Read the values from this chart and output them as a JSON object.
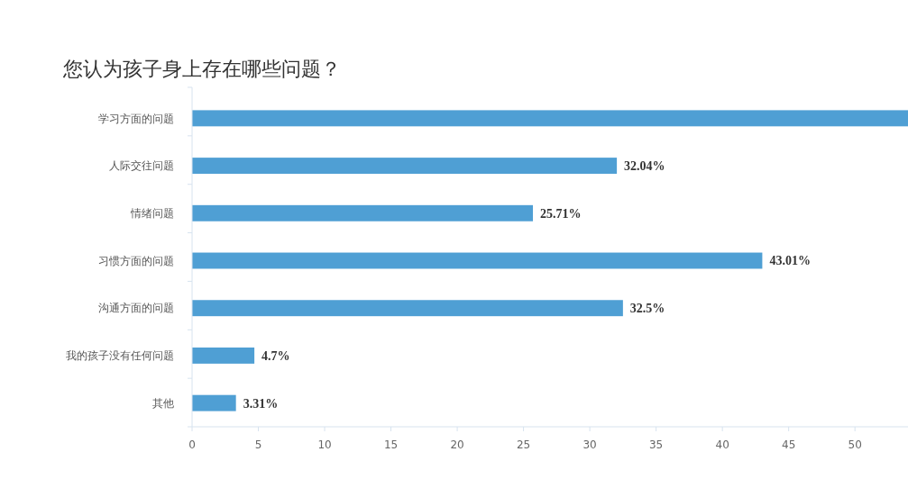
{
  "chart_data": {
    "type": "bar",
    "orientation": "horizontal",
    "title": "您认为孩子身上存在哪些问题？",
    "categories": [
      "学习方面的问题",
      "人际交往问题",
      "情绪问题",
      "习惯方面的问题",
      "沟通方面的问题",
      "我的孩子没有任何问题",
      "其他"
    ],
    "values": [
      54,
      32.04,
      25.71,
      43.01,
      32.5,
      4.7,
      3.31
    ],
    "value_labels": [
      null,
      "32.04%",
      "25.71%",
      "43.01%",
      "32.5%",
      "4.7%",
      "3.31%"
    ],
    "color": "#4f9fd4",
    "xlim": [
      0,
      54
    ],
    "xticks": [
      0,
      5,
      10,
      15,
      20,
      25,
      30,
      35,
      40,
      45,
      50
    ],
    "grid": false
  }
}
